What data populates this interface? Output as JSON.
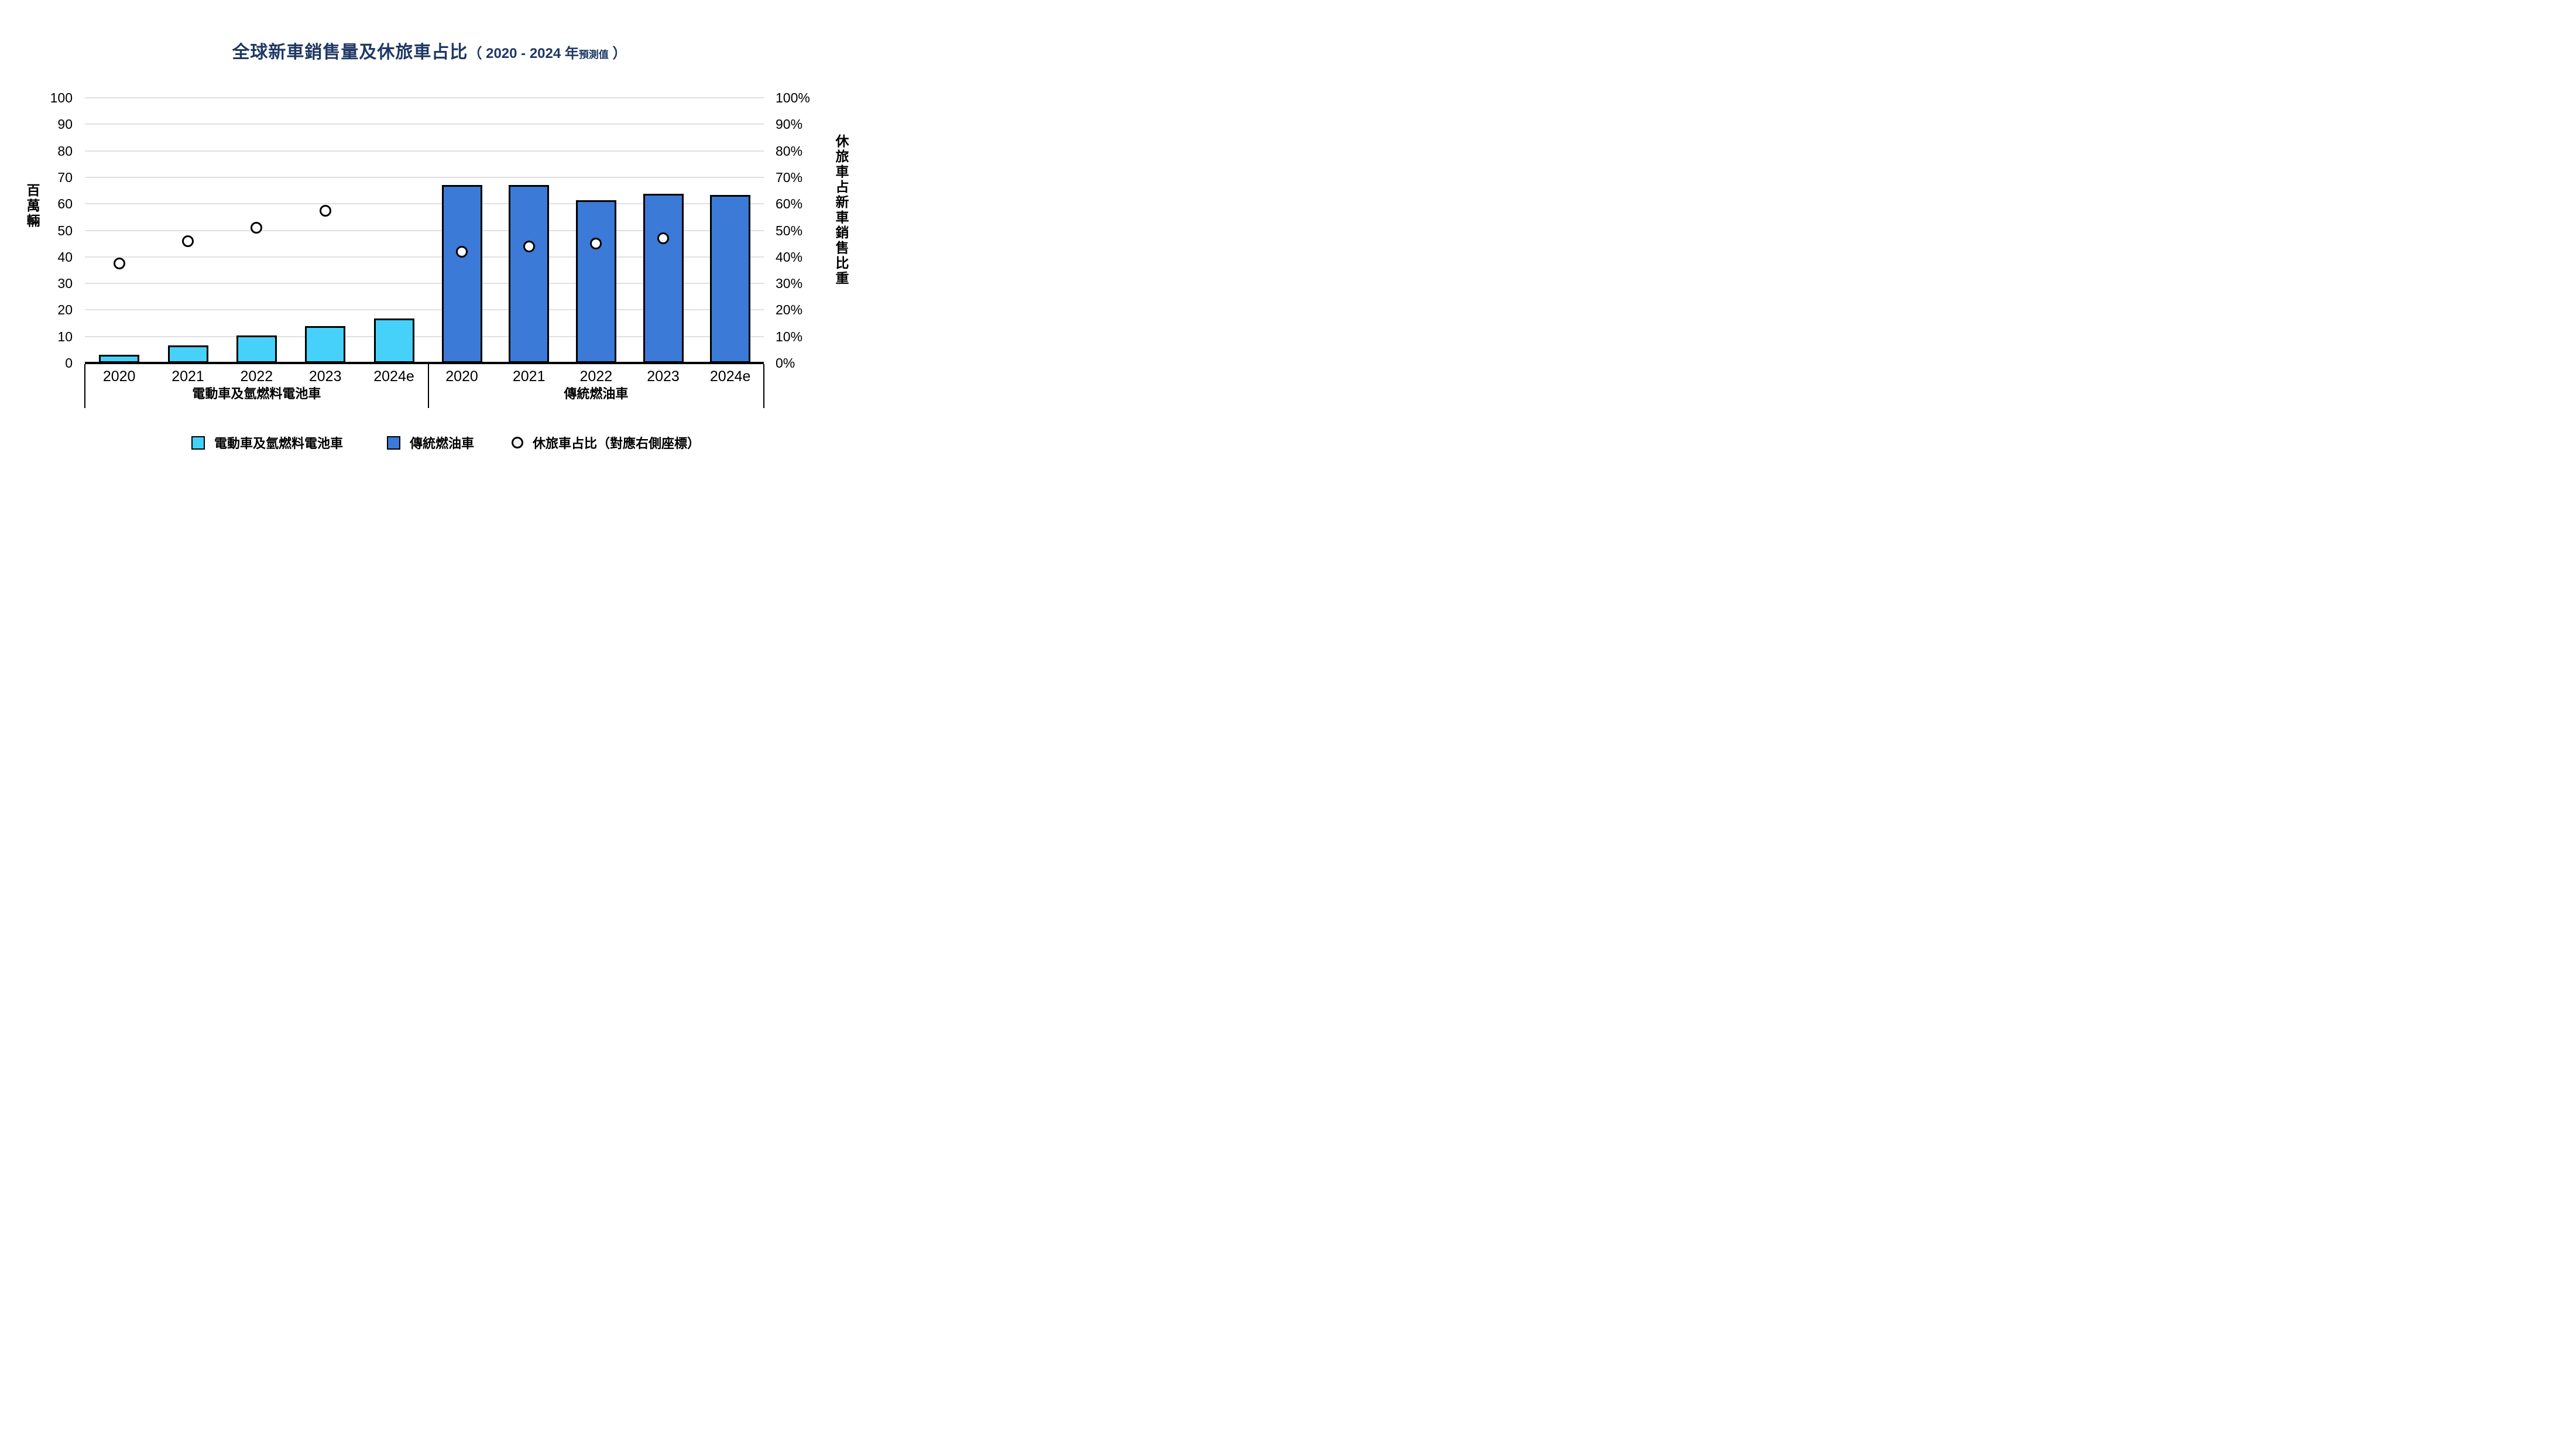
{
  "title": {
    "main": "全球新車銷售量及休旅車占比",
    "sub_prefix": "（ 2020 - 2024 年",
    "sub_small": "預測值",
    "sub_suffix": " ）"
  },
  "chart_data": {
    "type": "bar",
    "combo_note": "grouped bars (left axis, millions) + circle markers (right axis, percent)",
    "categories": [
      "2020",
      "2021",
      "2022",
      "2023",
      "2024e"
    ],
    "groups": [
      {
        "label": "電動車及氫燃料電池車",
        "bar_color": "#45D1FA",
        "values": [
          3.0,
          6.6,
          10.3,
          13.8,
          16.7
        ],
        "suv_share_pct": [
          37.5,
          46,
          51,
          57.5,
          null
        ]
      },
      {
        "label": "傳統燃油車",
        "bar_color": "#3B7AD6",
        "values": [
          67,
          67,
          61.3,
          63.8,
          63.3
        ],
        "suv_share_pct": [
          42,
          44,
          45,
          47,
          null
        ]
      }
    ],
    "left_axis": {
      "label": "百萬輛",
      "range": [
        0,
        100
      ],
      "tick_step": 10,
      "tick_labels": [
        "0",
        "10",
        "20",
        "30",
        "40",
        "50",
        "60",
        "70",
        "80",
        "90",
        "100"
      ],
      "grid": true
    },
    "right_axis": {
      "label": "休旅車占新車銷售比重",
      "range": [
        0,
        100
      ],
      "tick_step": 10,
      "tick_labels": [
        "0%",
        "10%",
        "20%",
        "30%",
        "40%",
        "50%",
        "60%",
        "70%",
        "80%",
        "90%",
        "100%"
      ]
    },
    "marker_series": {
      "name": "休旅車占比（對應右側座標）",
      "shape": "circle",
      "fill": "#FFFFFF",
      "stroke": "#000000",
      "axis": "right"
    }
  },
  "legend": {
    "items": [
      {
        "label": "電動車及氫燃料電池車",
        "swatch": "square",
        "color": "#45D1FA"
      },
      {
        "label": "傳統燃油車",
        "swatch": "square",
        "color": "#3B7AD6"
      },
      {
        "label": "休旅車占比（對應右側座標）",
        "swatch": "circle",
        "color": "#FFFFFF"
      }
    ]
  },
  "colors": {
    "title": "#1F3864",
    "gridline": "#E0E0E0",
    "axis_line": "#000000",
    "ev_bar": "#45D1FA",
    "ice_bar": "#3B7AD6",
    "marker_fill": "#FFFFFF",
    "marker_stroke": "#000000"
  }
}
